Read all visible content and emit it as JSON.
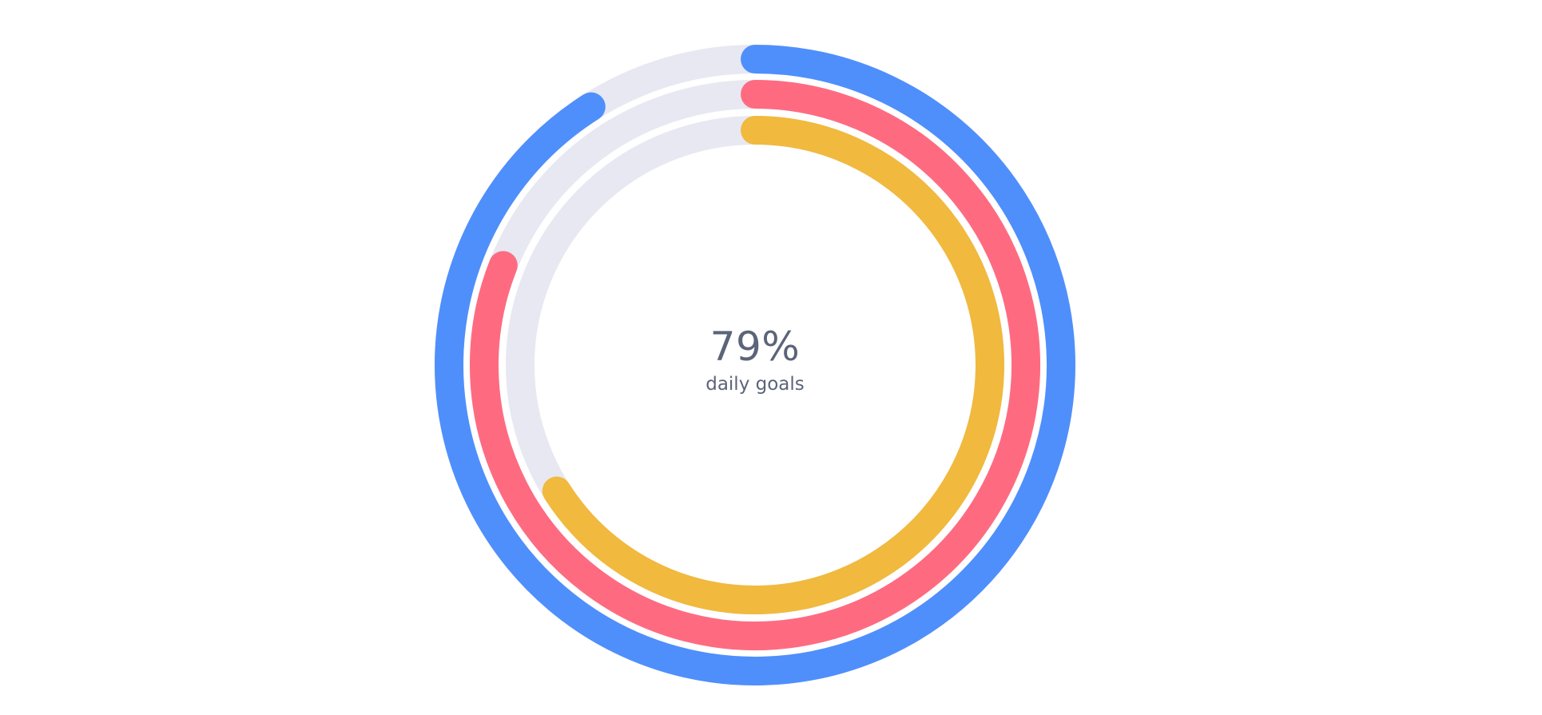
{
  "chart_data": {
    "type": "radialBar",
    "title": "",
    "center": {
      "value": "79%",
      "label": "daily goals"
    },
    "track_color": "#e7e8f2",
    "start_angle_deg": 0,
    "direction": "clockwise",
    "series": [
      {
        "value": 91,
        "color": "#4f8ffb"
      },
      {
        "value": 81,
        "color": "#fe6b81"
      },
      {
        "value": 66,
        "color": "#f1b93d"
      }
    ],
    "max": 100
  }
}
